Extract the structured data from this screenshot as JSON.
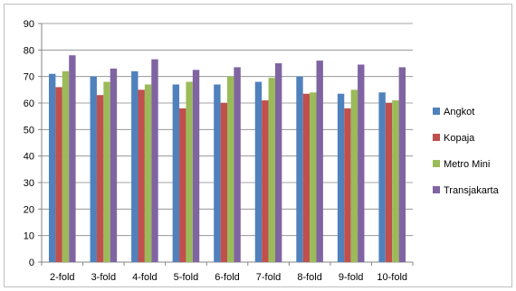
{
  "chart_data": {
    "type": "bar",
    "categories": [
      "2-fold",
      "3-fold",
      "4-fold",
      "5-fold",
      "6-fold",
      "7-fold",
      "8-fold",
      "9-fold",
      "10-fold"
    ],
    "series": [
      {
        "name": "Angkot",
        "color": "#4f81bd",
        "values": [
          71,
          70,
          72,
          67,
          67,
          68,
          70,
          63.5,
          64
        ]
      },
      {
        "name": "Kopaja",
        "color": "#c0504d",
        "values": [
          66,
          63,
          65,
          58,
          60,
          61,
          63.5,
          58,
          60
        ]
      },
      {
        "name": "Metro Mini",
        "color": "#9bbb59",
        "values": [
          72,
          68,
          67,
          68,
          70,
          69.5,
          64,
          65,
          61
        ]
      },
      {
        "name": "Transjakarta",
        "color": "#8064a2",
        "values": [
          78,
          73,
          76.5,
          72.5,
          73.5,
          75,
          76,
          74.5,
          73.5
        ]
      }
    ],
    "ylim": [
      0,
      90
    ],
    "yticks": [
      0,
      10,
      20,
      30,
      40,
      50,
      60,
      70,
      80,
      90
    ],
    "grid": true,
    "legend_position": "right",
    "title": "",
    "xlabel": "",
    "ylabel": ""
  }
}
